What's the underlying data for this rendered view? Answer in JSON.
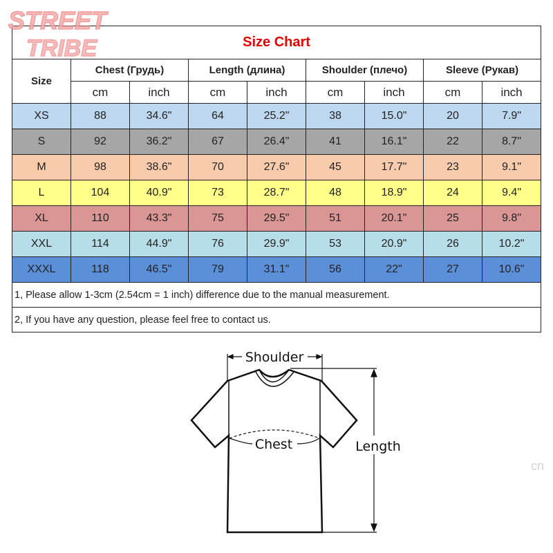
{
  "brand_watermark": "STREET TRIBE",
  "title": "Size Chart",
  "size_header": "Size",
  "columns": [
    {
      "label": "Chest  (Грудь)",
      "units": [
        "cm",
        "inch"
      ]
    },
    {
      "label": "Length (длина)",
      "units": [
        "cm",
        "inch"
      ]
    },
    {
      "label": "Shoulder (плечо)",
      "units": [
        "cm",
        "inch"
      ]
    },
    {
      "label": "Sleeve (Рукав)",
      "units": [
        "cm",
        "inch"
      ]
    }
  ],
  "rows": [
    {
      "size": "XS",
      "color": "#bdd7ee",
      "values": [
        "88",
        "34.6\"",
        "64",
        "25.2\"",
        "38",
        "15.0\"",
        "20",
        "7.9\""
      ]
    },
    {
      "size": "S",
      "color": "#a6a6a6",
      "values": [
        "92",
        "36.2\"",
        "67",
        "26.4\"",
        "41",
        "16.1\"",
        "22",
        "8.7\""
      ]
    },
    {
      "size": "M",
      "color": "#f8cbad",
      "values": [
        "98",
        "38.6\"",
        "70",
        "27.6\"",
        "45",
        "17.7\"",
        "23",
        "9.1\""
      ]
    },
    {
      "size": "L",
      "color": "#ffff89",
      "values": [
        "104",
        "40.9\"",
        "73",
        "28.7\"",
        "48",
        "18.9\"",
        "24",
        "9.4\""
      ]
    },
    {
      "size": "XL",
      "color": "#da9694",
      "values": [
        "110",
        "43.3\"",
        "75",
        "29.5\"",
        "51",
        "20.1\"",
        "25",
        "9.8\""
      ]
    },
    {
      "size": "XXL",
      "color": "#b7dee8",
      "values": [
        "114",
        "44.9\"",
        "76",
        "29.9\"",
        "53",
        "20.9\"",
        "26",
        "10.2\""
      ]
    },
    {
      "size": "XXXL",
      "color": "#5b8fd8",
      "values": [
        "118",
        "46.5\"",
        "79",
        "31.1\"",
        "56",
        "22\"",
        "27",
        "10.6\""
      ]
    }
  ],
  "notes": [
    "1, Please allow 1-3cm (2.54cm = 1 inch) difference due to the manual measurement.",
    "2, If you have any question, please feel free to contact us."
  ],
  "diagram": {
    "shoulder": "Shoulder",
    "chest": "Chest",
    "length": "Length"
  },
  "corner_watermark": "cn"
}
